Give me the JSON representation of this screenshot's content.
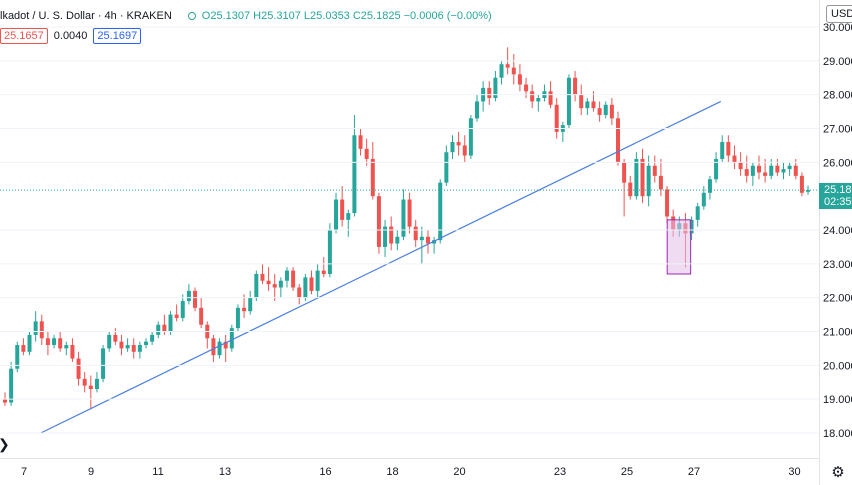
{
  "legend": {
    "title": "lkadot / U. S. Dollar · 4h · KRAKEN",
    "ohlc": "O25.1307 H25.3107 L25.0353 C25.1825 −0.0006 (−0.00%)"
  },
  "quote": {
    "bid": "25.1657",
    "spread": "0.0040",
    "ask": "25.1697"
  },
  "currency": "USD",
  "last_price": {
    "value": "25.18",
    "countdown": "02:35"
  },
  "colors": {
    "up": "#26a69a",
    "down": "#ef5350",
    "trendline": "#4a7fe0",
    "highlight_border": "#9c27b0",
    "highlight_fill": "#e1bee7"
  },
  "icons": {
    "settings": "gear-icon",
    "scroll_left": "left-arrow-icon"
  },
  "chart_data": {
    "type": "candlestick",
    "ylim": [
      17.5,
      30.5
    ],
    "y_ticks": [
      "30.0000",
      "29.0000",
      "28.0000",
      "27.0000",
      "26.0000",
      "24.0000",
      "23.0000",
      "22.0000",
      "21.0000",
      "20.0000",
      "19.0000",
      "18.0000"
    ],
    "x_ticks": [
      "7",
      "9",
      "11",
      "13",
      "16",
      "18",
      "20",
      "23",
      "25",
      "27",
      "30"
    ],
    "last_price": 25.18,
    "ohlc": [
      [
        19.0,
        19.2,
        18.8,
        18.9
      ],
      [
        18.9,
        20.1,
        18.8,
        19.9
      ],
      [
        19.9,
        20.7,
        19.8,
        20.6
      ],
      [
        20.6,
        20.8,
        20.3,
        20.4
      ],
      [
        20.4,
        21.0,
        20.3,
        20.9
      ],
      [
        20.9,
        21.6,
        20.7,
        21.3
      ],
      [
        21.3,
        21.5,
        20.6,
        20.8
      ],
      [
        20.8,
        21.0,
        20.3,
        20.6
      ],
      [
        20.6,
        20.9,
        20.5,
        20.8
      ],
      [
        20.8,
        21.0,
        20.4,
        20.5
      ],
      [
        20.5,
        20.7,
        20.3,
        20.6
      ],
      [
        20.6,
        20.8,
        20.1,
        20.2
      ],
      [
        20.2,
        20.4,
        19.4,
        19.6
      ],
      [
        19.6,
        19.8,
        19.2,
        19.4
      ],
      [
        19.4,
        19.7,
        18.7,
        19.3
      ],
      [
        19.3,
        19.8,
        19.2,
        19.6
      ],
      [
        19.6,
        20.6,
        19.5,
        20.5
      ],
      [
        20.5,
        21.0,
        20.4,
        20.9
      ],
      [
        20.9,
        21.1,
        20.6,
        20.7
      ],
      [
        20.7,
        20.9,
        20.3,
        20.5
      ],
      [
        20.5,
        20.8,
        20.4,
        20.6
      ],
      [
        20.6,
        20.8,
        20.2,
        20.4
      ],
      [
        20.4,
        20.7,
        20.2,
        20.6
      ],
      [
        20.6,
        20.8,
        20.5,
        20.7
      ],
      [
        20.7,
        21.0,
        20.6,
        20.9
      ],
      [
        20.9,
        21.3,
        20.8,
        21.2
      ],
      [
        21.2,
        21.5,
        20.9,
        21.0
      ],
      [
        21.0,
        21.6,
        20.9,
        21.5
      ],
      [
        21.5,
        21.8,
        21.3,
        21.4
      ],
      [
        21.4,
        22.1,
        21.3,
        21.9
      ],
      [
        21.9,
        22.4,
        21.8,
        22.2
      ],
      [
        22.2,
        22.3,
        21.6,
        21.7
      ],
      [
        21.7,
        22.0,
        21.1,
        21.2
      ],
      [
        21.2,
        21.3,
        20.5,
        20.8
      ],
      [
        20.8,
        20.9,
        20.1,
        20.3
      ],
      [
        20.3,
        20.8,
        20.2,
        20.7
      ],
      [
        20.7,
        20.9,
        20.1,
        20.5
      ],
      [
        20.5,
        21.2,
        20.4,
        21.1
      ],
      [
        21.1,
        21.8,
        21.0,
        21.7
      ],
      [
        21.7,
        22.1,
        21.4,
        21.6
      ],
      [
        21.6,
        22.2,
        21.5,
        22.0
      ],
      [
        22.0,
        22.8,
        21.9,
        22.7
      ],
      [
        22.7,
        23.0,
        22.4,
        22.5
      ],
      [
        22.5,
        22.9,
        22.2,
        22.4
      ],
      [
        22.4,
        22.7,
        21.9,
        22.3
      ],
      [
        22.3,
        22.6,
        22.0,
        22.5
      ],
      [
        22.5,
        22.9,
        22.3,
        22.8
      ],
      [
        22.8,
        22.9,
        22.2,
        22.3
      ],
      [
        22.3,
        22.4,
        21.8,
        22.0
      ],
      [
        22.0,
        22.7,
        21.9,
        22.6
      ],
      [
        22.6,
        22.8,
        22.1,
        22.2
      ],
      [
        22.2,
        23.0,
        22.0,
        22.8
      ],
      [
        22.8,
        23.2,
        22.6,
        22.7
      ],
      [
        22.7,
        24.2,
        22.6,
        24.0
      ],
      [
        24.0,
        25.1,
        23.9,
        24.9
      ],
      [
        24.9,
        25.3,
        24.1,
        24.3
      ],
      [
        24.3,
        24.6,
        23.8,
        24.5
      ],
      [
        24.5,
        27.4,
        24.4,
        26.8
      ],
      [
        26.8,
        27.0,
        26.2,
        26.4
      ],
      [
        26.4,
        26.7,
        25.9,
        26.1
      ],
      [
        26.1,
        26.6,
        24.9,
        25.0
      ],
      [
        25.0,
        25.1,
        23.3,
        23.5
      ],
      [
        23.5,
        24.3,
        23.2,
        24.1
      ],
      [
        24.1,
        24.4,
        23.4,
        23.6
      ],
      [
        23.6,
        24.0,
        23.4,
        23.8
      ],
      [
        23.8,
        25.2,
        23.7,
        24.9
      ],
      [
        24.9,
        25.1,
        23.9,
        24.1
      ],
      [
        24.1,
        24.3,
        23.5,
        23.7
      ],
      [
        23.7,
        24.1,
        23.0,
        23.8
      ],
      [
        23.8,
        24.0,
        23.3,
        23.6
      ],
      [
        23.6,
        23.8,
        23.3,
        23.7
      ],
      [
        23.7,
        25.5,
        23.6,
        25.4
      ],
      [
        25.4,
        26.5,
        25.3,
        26.3
      ],
      [
        26.3,
        26.8,
        26.1,
        26.6
      ],
      [
        26.6,
        26.9,
        26.2,
        26.5
      ],
      [
        26.5,
        26.8,
        26.0,
        26.2
      ],
      [
        26.2,
        27.4,
        26.1,
        27.3
      ],
      [
        27.3,
        28.0,
        27.2,
        27.8
      ],
      [
        27.8,
        28.4,
        27.5,
        28.2
      ],
      [
        28.2,
        28.4,
        27.7,
        27.9
      ],
      [
        27.9,
        28.7,
        27.8,
        28.5
      ],
      [
        28.5,
        29.0,
        28.3,
        28.9
      ],
      [
        28.9,
        29.4,
        28.6,
        28.8
      ],
      [
        28.8,
        29.2,
        28.3,
        28.6
      ],
      [
        28.6,
        28.9,
        28.1,
        28.3
      ],
      [
        28.3,
        28.5,
        27.9,
        28.1
      ],
      [
        28.1,
        28.3,
        27.6,
        27.8
      ],
      [
        27.8,
        28.0,
        27.5,
        27.9
      ],
      [
        27.9,
        28.3,
        27.8,
        28.1
      ],
      [
        28.1,
        28.4,
        27.6,
        27.7
      ],
      [
        27.7,
        27.9,
        26.7,
        26.9
      ],
      [
        26.9,
        27.2,
        26.6,
        27.1
      ],
      [
        27.1,
        28.6,
        27.0,
        28.5
      ],
      [
        28.5,
        28.7,
        27.8,
        28.0
      ],
      [
        28.0,
        28.3,
        27.4,
        27.6
      ],
      [
        27.6,
        27.9,
        27.4,
        27.8
      ],
      [
        27.8,
        28.1,
        27.5,
        27.6
      ],
      [
        27.6,
        27.8,
        27.2,
        27.4
      ],
      [
        27.4,
        27.8,
        27.3,
        27.7
      ],
      [
        27.7,
        27.9,
        27.1,
        27.3
      ],
      [
        27.3,
        27.5,
        25.9,
        26.0
      ],
      [
        26.0,
        26.1,
        24.4,
        25.4
      ],
      [
        25.4,
        25.6,
        24.9,
        25.0
      ],
      [
        25.0,
        26.3,
        24.9,
        26.1
      ],
      [
        26.1,
        26.4,
        24.8,
        25.0
      ],
      [
        25.0,
        26.2,
        24.7,
        25.9
      ],
      [
        25.9,
        26.2,
        25.4,
        25.6
      ],
      [
        25.6,
        26.1,
        25.0,
        25.2
      ],
      [
        25.2,
        25.3,
        24.2,
        24.4
      ],
      [
        24.4,
        24.6,
        23.8,
        24.0
      ],
      [
        24.0,
        24.4,
        23.8,
        24.2
      ],
      [
        24.2,
        24.5,
        22.9,
        23.9
      ],
      [
        23.9,
        24.4,
        23.7,
        24.3
      ],
      [
        24.3,
        24.8,
        24.1,
        24.7
      ],
      [
        24.7,
        25.3,
        24.6,
        25.1
      ],
      [
        25.1,
        25.6,
        24.9,
        25.5
      ],
      [
        25.5,
        26.3,
        25.4,
        26.1
      ],
      [
        26.1,
        26.8,
        26.0,
        26.6
      ],
      [
        26.6,
        26.8,
        26.0,
        26.2
      ],
      [
        26.2,
        26.5,
        25.8,
        26.0
      ],
      [
        26.0,
        26.3,
        25.6,
        25.8
      ],
      [
        25.8,
        26.2,
        25.4,
        25.6
      ],
      [
        25.6,
        26.0,
        25.3,
        25.9
      ],
      [
        25.9,
        26.2,
        25.5,
        25.7
      ],
      [
        25.7,
        26.1,
        25.4,
        25.6
      ],
      [
        25.6,
        26.1,
        25.5,
        25.9
      ],
      [
        25.9,
        26.1,
        25.6,
        25.7
      ],
      [
        25.7,
        26.0,
        25.5,
        25.8
      ],
      [
        25.8,
        26.0,
        25.6,
        25.9
      ],
      [
        25.9,
        26.1,
        25.5,
        25.6
      ],
      [
        25.6,
        25.7,
        25.0,
        25.1
      ],
      [
        25.13,
        25.31,
        25.04,
        25.18
      ]
    ],
    "trendline": {
      "from": [
        7.5,
        18.0
      ],
      "to": [
        27.8,
        27.8
      ]
    },
    "highlight_box": {
      "x": [
        26.2,
        26.9
      ],
      "y": [
        22.7,
        24.3
      ]
    }
  }
}
